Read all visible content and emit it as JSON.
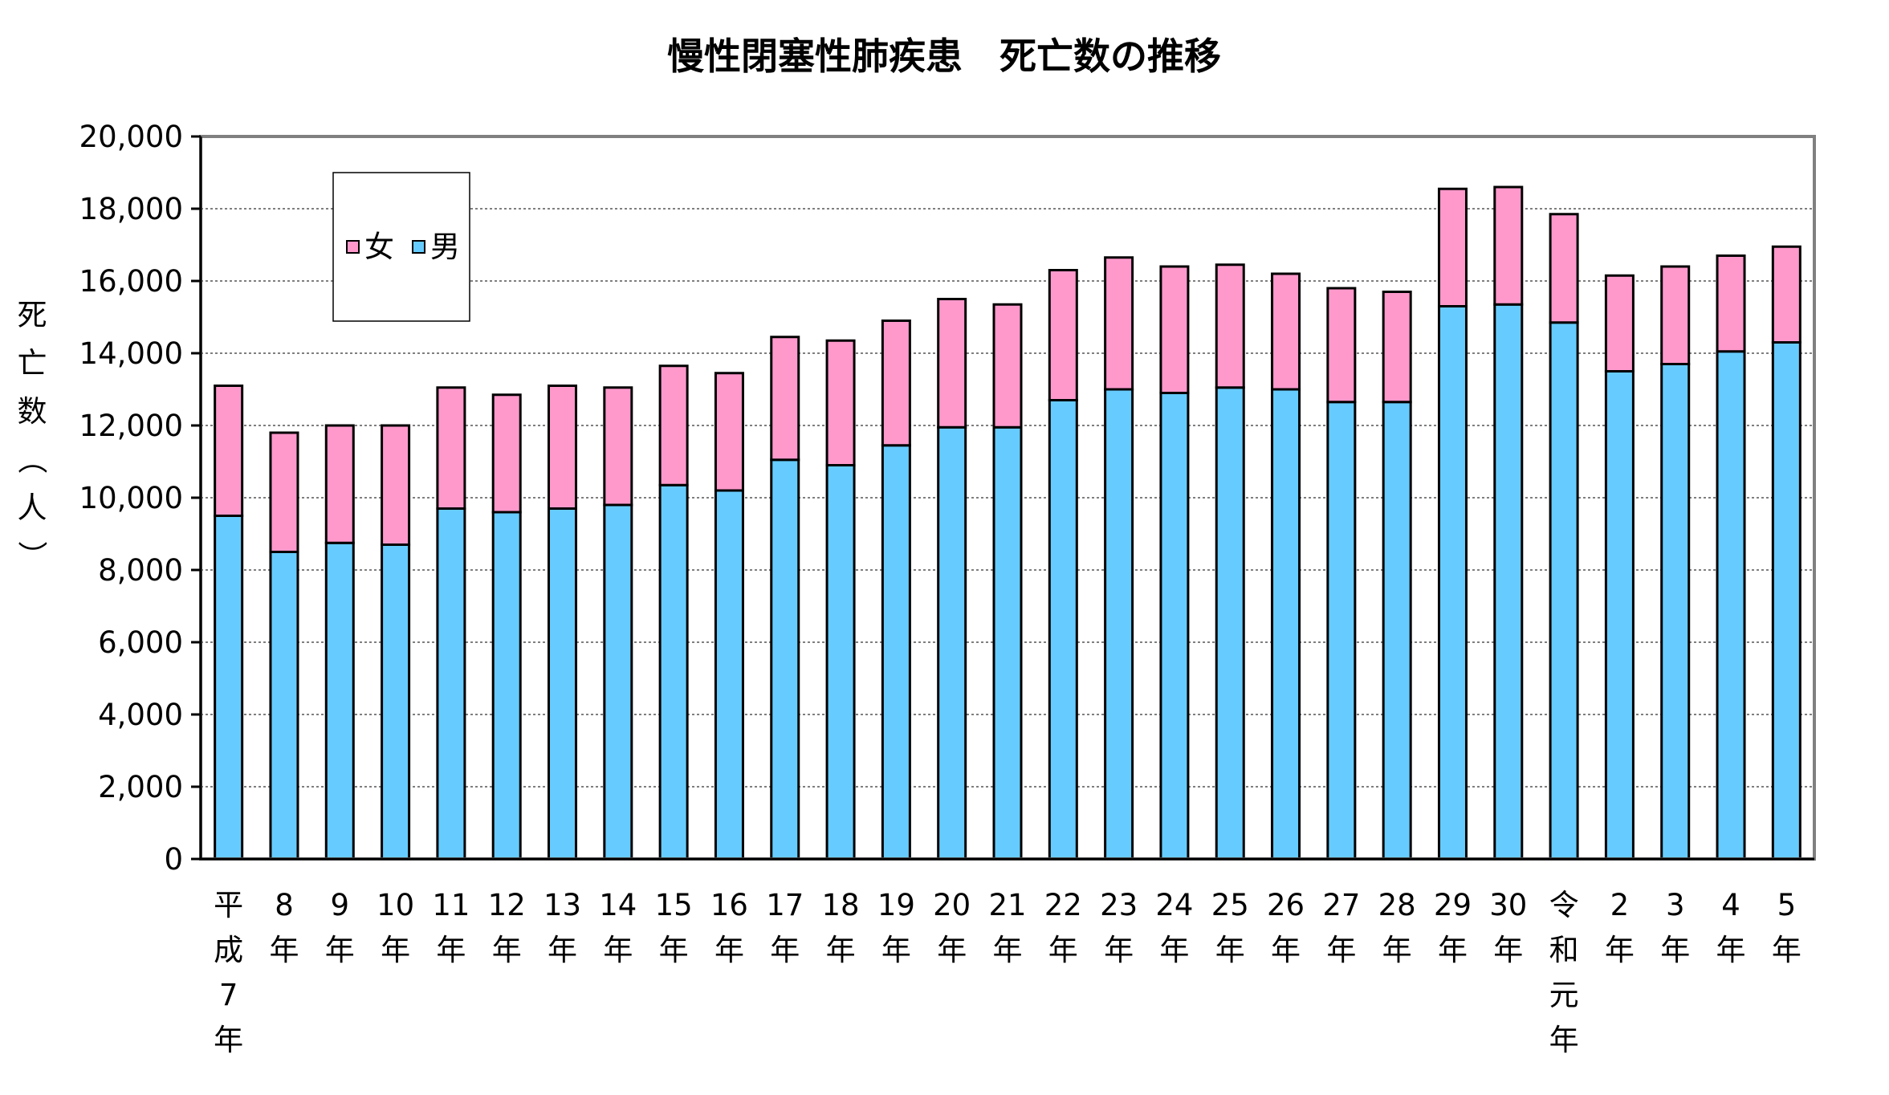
{
  "chart_data": {
    "type": "bar",
    "stacked": true,
    "title": "慢性閉塞性肺疾患　死亡数の推移",
    "ylabel": "死亡数（人）",
    "xlabel": "",
    "ylim": [
      0,
      20000
    ],
    "yticks": [
      "0",
      "2,000",
      "4,000",
      "6,000",
      "8,000",
      "10,000",
      "12,000",
      "14,000",
      "16,000",
      "18,000",
      "20,000"
    ],
    "grid": true,
    "legend_position": "top-left",
    "categories": [
      "平成7年",
      "8年",
      "9年",
      "10年",
      "11年",
      "12年",
      "13年",
      "14年",
      "15年",
      "16年",
      "17年",
      "18年",
      "19年",
      "20年",
      "21年",
      "22年",
      "23年",
      "24年",
      "25年",
      "26年",
      "27年",
      "28年",
      "29年",
      "30年",
      "令和元年",
      "2年",
      "3年",
      "4年",
      "5年"
    ],
    "category_lines": [
      [
        "平",
        "成",
        "7",
        "年"
      ],
      [
        "8",
        "年"
      ],
      [
        "9",
        "年"
      ],
      [
        "10",
        "年"
      ],
      [
        "11",
        "年"
      ],
      [
        "12",
        "年"
      ],
      [
        "13",
        "年"
      ],
      [
        "14",
        "年"
      ],
      [
        "15",
        "年"
      ],
      [
        "16",
        "年"
      ],
      [
        "17",
        "年"
      ],
      [
        "18",
        "年"
      ],
      [
        "19",
        "年"
      ],
      [
        "20",
        "年"
      ],
      [
        "21",
        "年"
      ],
      [
        "22",
        "年"
      ],
      [
        "23",
        "年"
      ],
      [
        "24",
        "年"
      ],
      [
        "25",
        "年"
      ],
      [
        "26",
        "年"
      ],
      [
        "27",
        "年"
      ],
      [
        "28",
        "年"
      ],
      [
        "29",
        "年"
      ],
      [
        "30",
        "年"
      ],
      [
        "令",
        "和",
        "元",
        "年"
      ],
      [
        "2",
        "年"
      ],
      [
        "3",
        "年"
      ],
      [
        "4",
        "年"
      ],
      [
        "5",
        "年"
      ]
    ],
    "series": [
      {
        "name": "男",
        "color": "#66ccff",
        "values": [
          9500,
          8500,
          8750,
          8700,
          9700,
          9600,
          9700,
          9800,
          10350,
          10200,
          11050,
          10900,
          11450,
          11950,
          11950,
          12700,
          13000,
          12900,
          13050,
          13000,
          12650,
          12650,
          15300,
          15350,
          14850,
          13500,
          13700,
          14050,
          14300
        ]
      },
      {
        "name": "女",
        "color": "#ff99cc",
        "values": [
          3600,
          3300,
          3250,
          3300,
          3350,
          3250,
          3400,
          3250,
          3300,
          3250,
          3400,
          3450,
          3450,
          3550,
          3400,
          3600,
          3650,
          3500,
          3400,
          3200,
          3150,
          3050,
          3250,
          3250,
          3000,
          2650,
          2700,
          2650,
          2650
        ]
      }
    ],
    "legend_order": [
      "女",
      "男"
    ]
  }
}
